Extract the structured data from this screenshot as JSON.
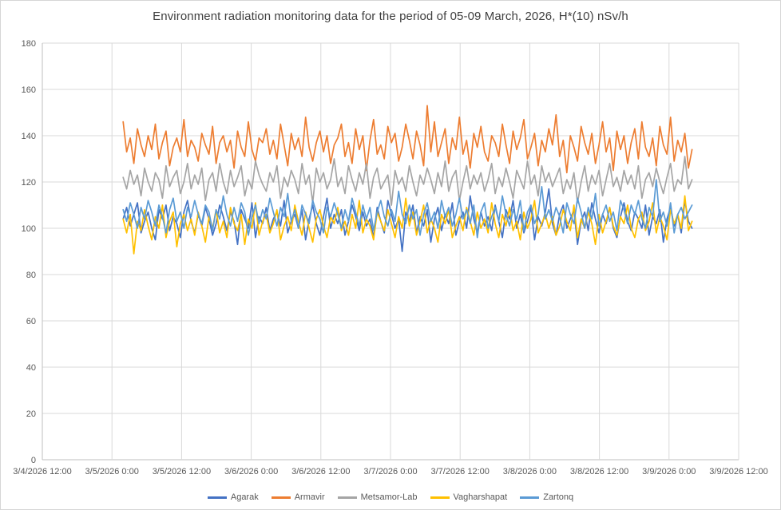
{
  "chart_data": {
    "type": "line",
    "title": "Environment radiation monitoring data for the period of 05-09 March, 2026, H*(10) nSv/h",
    "xlabel": "",
    "ylabel": "",
    "grid": true,
    "legend_position": "bottom",
    "x_axis": {
      "labels": [
        "3/4/2026 12:00",
        "3/5/2026 0:00",
        "3/5/2026 12:00",
        "3/6/2026 0:00",
        "3/6/2026 12:00",
        "3/7/2026 0:00",
        "3/7/2026 12:00",
        "3/8/2026 0:00",
        "3/8/2026 12:00",
        "3/9/2026 0:00",
        "3/9/2026 12:00"
      ],
      "intervals": 10,
      "data_start_interval": 1.16,
      "data_end_interval": 9.33
    },
    "y_axis": {
      "min": 0,
      "max": 180,
      "step": 20,
      "ticks": [
        0,
        20,
        40,
        60,
        80,
        100,
        120,
        140,
        160,
        180
      ]
    },
    "series": [
      {
        "name": "Agarak",
        "color": "#4472C4",
        "values": [
          104,
          109,
          101,
          106,
          111,
          98,
          103,
          107,
          100,
          95,
          108,
          104,
          110,
          99,
          105,
          102,
          96,
          107,
          112,
          103,
          98,
          106,
          101,
          109,
          104,
          97,
          102,
          110,
          105,
          99,
          107,
          103,
          93,
          108,
          104,
          100,
          111,
          96,
          105,
          102,
          109,
          99,
          104,
          107,
          101,
          112,
          98,
          103,
          106,
          100,
          108,
          95,
          104,
          110,
          102,
          97,
          105,
          113,
          100,
          106,
          102,
          108,
          97,
          103,
          110,
          105,
          99,
          107,
          101,
          104,
          96,
          109,
          103,
          98,
          112,
          106,
          100,
          104,
          90,
          107,
          103,
          110,
          98,
          105,
          101,
          108,
          94,
          104,
          109,
          99,
          106,
          102,
          111,
          97,
          103,
          107,
          100,
          114,
          104,
          98,
          107,
          101,
          105,
          99,
          110,
          103,
          96,
          108,
          104,
          112,
          100,
          106,
          98,
          103,
          109,
          95,
          105,
          101,
          107,
          117,
          102,
          97,
          106,
          110,
          100,
          104,
          108,
          93,
          103,
          107,
          99,
          111,
          104,
          98,
          106,
          102,
          109,
          100,
          96,
          105,
          111,
          103,
          99,
          107,
          104,
          100,
          110,
          97,
          105,
          102,
          108,
          94,
          104,
          109,
          101,
          106,
          98,
          112,
          103,
          100
        ]
      },
      {
        "name": "Armavir",
        "color": "#ED7D31",
        "values": [
          146,
          133,
          139,
          128,
          143,
          136,
          131,
          140,
          134,
          145,
          130,
          137,
          142,
          127,
          135,
          139,
          133,
          147,
          131,
          138,
          135,
          129,
          141,
          136,
          132,
          144,
          128,
          137,
          140,
          133,
          138,
          126,
          142,
          135,
          131,
          146,
          134,
          129,
          139,
          137,
          143,
          132,
          138,
          130,
          145,
          136,
          127,
          141,
          134,
          139,
          131,
          148,
          135,
          129,
          137,
          142,
          133,
          140,
          128,
          136,
          139,
          145,
          131,
          137,
          128,
          143,
          134,
          140,
          125,
          138,
          147,
          132,
          136,
          130,
          144,
          137,
          141,
          129,
          135,
          145,
          138,
          130,
          142,
          136,
          127,
          153,
          133,
          146,
          131,
          137,
          143,
          128,
          139,
          134,
          148,
          132,
          138,
          126,
          141,
          135,
          144,
          133,
          129,
          140,
          137,
          131,
          145,
          136,
          128,
          142,
          134,
          139,
          147,
          130,
          135,
          141,
          127,
          138,
          133,
          143,
          136,
          149,
          131,
          138,
          124,
          140,
          135,
          129,
          144,
          137,
          132,
          141,
          128,
          136,
          146,
          133,
          139,
          125,
          142,
          134,
          140,
          128,
          137,
          143,
          130,
          146,
          135,
          131,
          139,
          127,
          144,
          136,
          132,
          148,
          129,
          138,
          133,
          141,
          126,
          134
        ]
      },
      {
        "name": "Metsamor-Lab",
        "color": "#A5A5A5",
        "values": [
          122,
          117,
          125,
          119,
          123,
          114,
          126,
          120,
          116,
          124,
          121,
          113,
          127,
          118,
          122,
          125,
          115,
          120,
          128,
          117,
          123,
          119,
          126,
          112,
          121,
          124,
          116,
          128,
          120,
          115,
          125,
          118,
          122,
          127,
          114,
          121,
          117,
          129,
          123,
          119,
          116,
          124,
          120,
          127,
          113,
          122,
          118,
          125,
          121,
          115,
          128,
          119,
          123,
          111,
          126,
          120,
          124,
          117,
          121,
          130,
          118,
          122,
          115,
          127,
          121,
          116,
          124,
          119,
          128,
          113,
          122,
          126,
          117,
          120,
          123,
          110,
          125,
          119,
          122,
          116,
          127,
          120,
          114,
          123,
          119,
          126,
          121,
          115,
          124,
          118,
          129,
          116,
          122,
          125,
          112,
          120,
          127,
          117,
          123,
          119,
          124,
          116,
          121,
          128,
          115,
          122,
          118,
          126,
          120,
          113,
          125,
          121,
          117,
          129,
          119,
          123,
          114,
          127,
          120,
          124,
          118,
          122,
          126,
          115,
          121,
          117,
          124,
          111,
          120,
          127,
          116,
          123,
          119,
          125,
          114,
          121,
          128,
          118,
          122,
          116,
          125,
          119,
          123,
          117,
          127,
          113,
          121,
          124,
          118,
          126,
          120,
          115,
          122,
          128,
          116,
          121,
          119,
          131,
          117,
          121
        ]
      },
      {
        "name": "Vagharshapat",
        "color": "#FFC000",
        "values": [
          104,
          98,
          106,
          89,
          103,
          99,
          108,
          101,
          95,
          105,
          100,
          110,
          96,
          103,
          107,
          92,
          102,
          106,
          99,
          104,
          97,
          107,
          101,
          94,
          105,
          100,
          108,
          98,
          103,
          96,
          109,
          102,
          99,
          106,
          93,
          104,
          100,
          111,
          97,
          103,
          106,
          98,
          102,
          108,
          95,
          101,
          105,
          99,
          110,
          103,
          97,
          107,
          100,
          94,
          104,
          108,
          101,
          96,
          105,
          102,
          109,
          99,
          103,
          97,
          106,
          100,
          112,
          98,
          104,
          101,
          95,
          107,
          103,
          99,
          108,
          102,
          96,
          105,
          100,
          113,
          101,
          107,
          97,
          103,
          110,
          98,
          104,
          100,
          94,
          106,
          102,
          108,
          96,
          101,
          105,
          99,
          109,
          103,
          97,
          107,
          100,
          104,
          98,
          111,
          102,
          96,
          106,
          101,
          109,
          99,
          103,
          95,
          107,
          100,
          104,
          112,
          98,
          102,
          106,
          100,
          105,
          97,
          101,
          108,
          103,
          99,
          110,
          96,
          104,
          100,
          107,
          102,
          93,
          106,
          98,
          103,
          109,
          101,
          97,
          105,
          102,
          110,
          100,
          96,
          104,
          107,
          99,
          103,
          111,
          98,
          105,
          101,
          95,
          108,
          102,
          106,
          100,
          114,
          99,
          103
        ]
      },
      {
        "name": "Zartonq",
        "color": "#5B9BD5",
        "values": [
          108,
          103,
          111,
          106,
          100,
          109,
          104,
          112,
          107,
          101,
          110,
          105,
          98,
          108,
          113,
          103,
          107,
          100,
          109,
          105,
          112,
          106,
          102,
          110,
          107,
          99,
          108,
          104,
          114,
          106,
          101,
          109,
          103,
          111,
          107,
          97,
          105,
          110,
          102,
          108,
          104,
          113,
          107,
          101,
          109,
          105,
          115,
          103,
          108,
          100,
          110,
          106,
          102,
          112,
          107,
          104,
          98,
          109,
          105,
          111,
          106,
          100,
          108,
          103,
          113,
          107,
          101,
          110,
          104,
          109,
          99,
          107,
          112,
          105,
          101,
          108,
          103,
          116,
          106,
          102,
          110,
          104,
          108,
          97,
          106,
          111,
          103,
          107,
          100,
          112,
          105,
          109,
          101,
          106,
          113,
          104,
          108,
          102,
          110,
          96,
          107,
          111,
          100,
          105,
          109,
          103,
          114,
          106,
          101,
          108,
          104,
          112,
          99,
          107,
          110,
          102,
          106,
          118,
          104,
          108,
          103,
          109,
          105,
          98,
          111,
          106,
          102,
          113,
          107,
          100,
          109,
          104,
          115,
          101,
          106,
          110,
          103,
          107,
          99,
          112,
          108,
          102,
          110,
          106,
          112,
          104,
          100,
          109,
          105,
          121,
          103,
          107,
          101,
          111,
          98,
          106,
          109,
          104,
          107,
          110
        ]
      }
    ],
    "style": {
      "gridline_color": "#D9D9D9",
      "axis_line_color": "#BFBFBF",
      "tick_label_color": "#595959",
      "title_color": "#404040"
    }
  }
}
